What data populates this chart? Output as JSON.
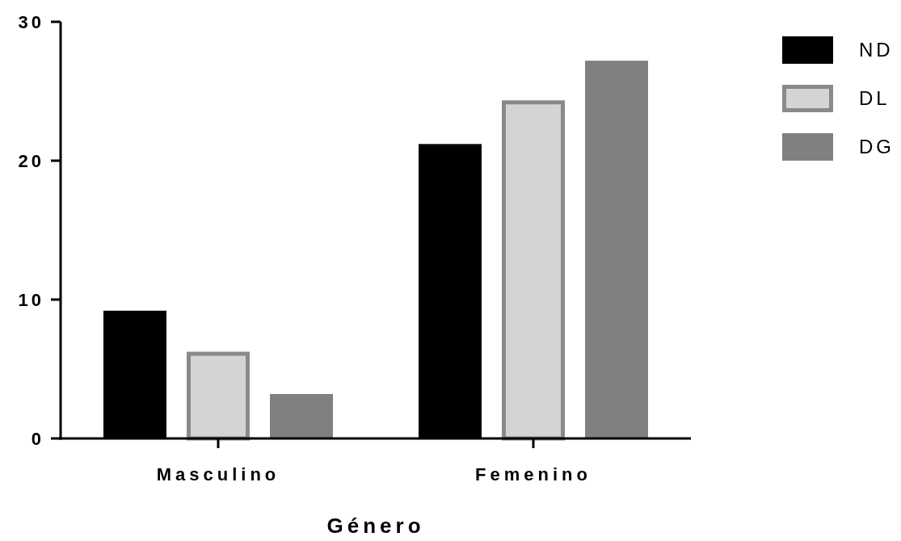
{
  "chart_data": {
    "type": "bar",
    "xlabel": "Género",
    "categories": [
      "Masculino",
      "Femenino"
    ],
    "series": [
      {
        "name": "ND",
        "color": "#000000",
        "values": [
          9.2,
          21.2
        ]
      },
      {
        "name": "DL",
        "color": "#d4d4d4",
        "values": [
          6.1,
          24.2
        ]
      },
      {
        "name": "DG",
        "color": "#808080",
        "values": [
          3.2,
          27.2
        ]
      }
    ],
    "ylim": [
      0,
      30
    ],
    "yticks": [
      0,
      10,
      20,
      30
    ],
    "grid": false,
    "legend": "top right"
  }
}
